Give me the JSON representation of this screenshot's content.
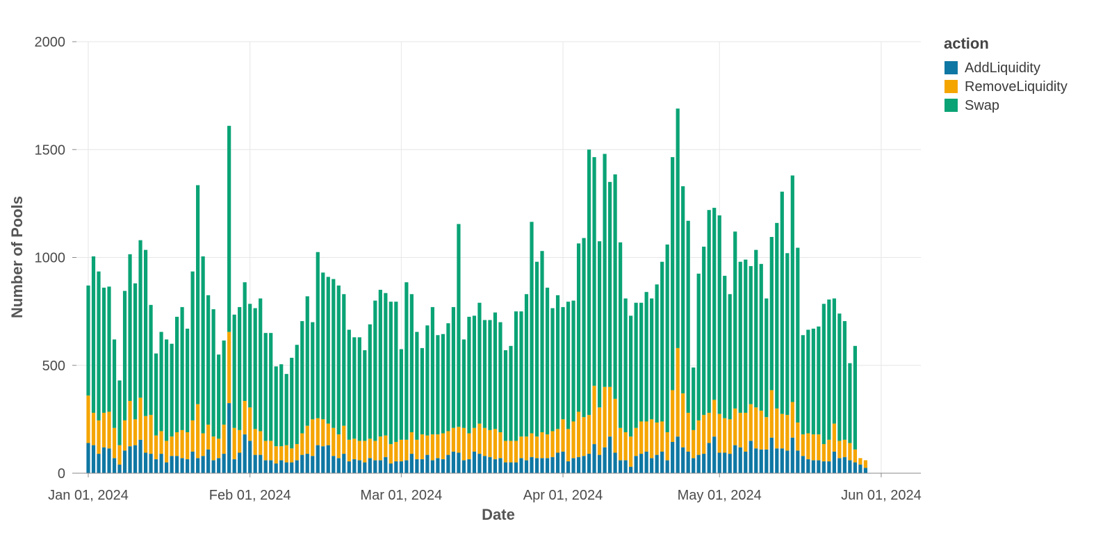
{
  "chart_data": {
    "type": "bar",
    "stacked": true,
    "xlabel": "Date",
    "ylabel": "Number of Pools",
    "ylim": [
      0,
      2000
    ],
    "yticks": [
      0,
      500,
      1000,
      1500,
      2000
    ],
    "x_start": "2024-01-01",
    "x_tick_labels": [
      {
        "date": "2024-01-01",
        "label": "Jan 01, 2024"
      },
      {
        "date": "2024-02-01",
        "label": "Feb 01, 2024"
      },
      {
        "date": "2024-03-01",
        "label": "Mar 01, 2024"
      },
      {
        "date": "2024-04-01",
        "label": "Apr 01, 2024"
      },
      {
        "date": "2024-05-01",
        "label": "May 01, 2024"
      },
      {
        "date": "2024-06-01",
        "label": "Jun 01, 2024"
      }
    ],
    "grid": true,
    "legend": {
      "title": "action",
      "placement": "top-right"
    },
    "series": [
      {
        "name": "AddLiquidity",
        "color": "#0f77a3",
        "values": [
          140,
          130,
          90,
          120,
          115,
          70,
          40,
          105,
          125,
          130,
          155,
          95,
          90,
          65,
          90,
          50,
          80,
          80,
          70,
          65,
          100,
          70,
          80,
          110,
          60,
          70,
          90,
          325,
          65,
          95,
          180,
          150,
          85,
          85,
          60,
          60,
          45,
          60,
          50,
          50,
          60,
          85,
          90,
          80,
          130,
          125,
          130,
          80,
          70,
          90,
          55,
          65,
          60,
          50,
          70,
          60,
          60,
          75,
          45,
          55,
          55,
          60,
          90,
          65,
          65,
          85,
          60,
          70,
          65,
          85,
          100,
          95,
          60,
          65,
          100,
          90,
          80,
          75,
          65,
          70,
          50,
          50,
          50,
          70,
          60,
          75,
          70,
          70,
          70,
          75,
          95,
          100,
          55,
          70,
          75,
          80,
          90,
          135,
          85,
          120,
          170,
          95,
          60,
          60,
          30,
          80,
          90,
          100,
          70,
          85,
          100,
          60,
          145,
          170,
          120,
          100,
          70,
          85,
          90,
          140,
          170,
          95,
          95,
          90,
          130,
          120,
          100,
          150,
          115,
          110,
          110,
          165,
          115,
          115,
          105,
          165,
          105,
          80,
          65,
          60,
          60,
          55,
          55,
          100,
          70,
          75,
          60,
          50,
          40,
          25
        ]
      },
      {
        "name": "RemoveLiquidity",
        "color": "#f5a500",
        "values": [
          220,
          150,
          155,
          160,
          170,
          140,
          90,
          140,
          210,
          120,
          195,
          170,
          180,
          110,
          105,
          100,
          90,
          110,
          130,
          125,
          145,
          250,
          105,
          115,
          110,
          90,
          135,
          330,
          145,
          105,
          155,
          155,
          120,
          110,
          90,
          90,
          80,
          65,
          80,
          65,
          75,
          100,
          130,
          170,
          125,
          125,
          100,
          130,
          110,
          130,
          100,
          95,
          90,
          100,
          90,
          90,
          110,
          100,
          90,
          90,
          100,
          95,
          100,
          90,
          115,
          90,
          120,
          110,
          120,
          110,
          110,
          120,
          150,
          120,
          110,
          140,
          130,
          125,
          140,
          120,
          100,
          100,
          100,
          100,
          110,
          110,
          100,
          120,
          110,
          120,
          110,
          150,
          150,
          170,
          210,
          180,
          180,
          270,
          220,
          280,
          230,
          250,
          150,
          130,
          140,
          130,
          150,
          140,
          180,
          150,
          140,
          130,
          240,
          410,
          250,
          180,
          130,
          160,
          180,
          140,
          170,
          180,
          160,
          160,
          170,
          160,
          180,
          170,
          190,
          180,
          150,
          220,
          185,
          160,
          165,
          165,
          130,
          100,
          120,
          120,
          120,
          80,
          100,
          130,
          80,
          80,
          80,
          60,
          30,
          35
        ]
      },
      {
        "name": "Swap",
        "color": "#0aa375",
        "values": [
          510,
          725,
          690,
          580,
          580,
          410,
          300,
          600,
          680,
          630,
          730,
          770,
          510,
          380,
          460,
          470,
          430,
          535,
          570,
          480,
          690,
          1015,
          820,
          600,
          590,
          390,
          390,
          955,
          525,
          570,
          550,
          480,
          560,
          615,
          500,
          500,
          370,
          380,
          330,
          420,
          460,
          520,
          600,
          450,
          770,
          680,
          680,
          690,
          690,
          610,
          510,
          470,
          480,
          420,
          530,
          650,
          680,
          660,
          660,
          650,
          420,
          730,
          640,
          500,
          400,
          510,
          590,
          460,
          460,
          500,
          560,
          940,
          410,
          540,
          520,
          560,
          500,
          510,
          540,
          510,
          420,
          440,
          600,
          580,
          660,
          980,
          810,
          840,
          680,
          570,
          620,
          520,
          590,
          560,
          780,
          830,
          1230,
          1060,
          770,
          1080,
          950,
          1040,
          860,
          620,
          560,
          580,
          550,
          600,
          560,
          640,
          740,
          870,
          1080,
          1110,
          960,
          890,
          290,
          680,
          780,
          940,
          890,
          920,
          660,
          580,
          820,
          700,
          710,
          640,
          730,
          680,
          550,
          710,
          860,
          1030,
          750,
          1050,
          810,
          460,
          480,
          490,
          500,
          650,
          650,
          580,
          590,
          550,
          370,
          480
        ]
      }
    ]
  }
}
